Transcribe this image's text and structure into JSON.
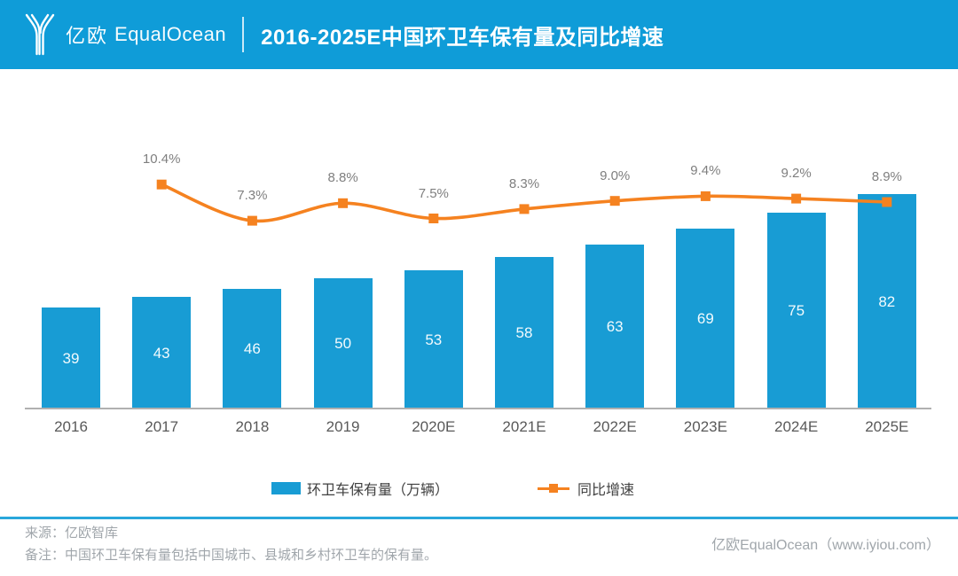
{
  "header": {
    "logo_zh": "亿欧",
    "logo_en": "EqualOcean",
    "title": "2016-2025E中国环卫车保有量及同比增速"
  },
  "colors": {
    "header_bg": "#0f9cd8",
    "bar": "#189cd4",
    "line": "#f58220",
    "percent_label": "#7f7f7f",
    "year_label": "#595959",
    "axis": "#b0b0b0",
    "footer_divider": "#29a7db",
    "footer_text": "#a0a6ab"
  },
  "chart_data": {
    "type": "combo",
    "categories": [
      "2016",
      "2017",
      "2018",
      "2019",
      "2020E",
      "2021E",
      "2022E",
      "2023E",
      "2024E",
      "2025E"
    ],
    "series": [
      {
        "name": "环卫车保有量（万辆）",
        "type": "bar",
        "unit": "万辆",
        "color": "#189cd4",
        "values": [
          39,
          43,
          46,
          50,
          53,
          58,
          63,
          69,
          75,
          82
        ]
      },
      {
        "name": "同比增速",
        "type": "line",
        "unit": "%",
        "color": "#f58220",
        "values": [
          null,
          10.4,
          7.3,
          8.8,
          7.5,
          8.3,
          9.0,
          9.4,
          9.2,
          8.9
        ]
      }
    ],
    "title": "2016-2025E中国环卫车保有量及同比增速",
    "xlabel": "",
    "ylabel": "",
    "bar_ylim": [
      0,
      90
    ],
    "line_ylim_pct": [
      6,
      12
    ],
    "grid": false,
    "legend_position": "bottom"
  },
  "footer": {
    "source": "来源：亿欧智库",
    "note": "备注：中国环卫车保有量包括中国城市、县城和乡村环卫车的保有量。",
    "brand": "亿欧EqualOcean（www.iyiou.com）"
  }
}
